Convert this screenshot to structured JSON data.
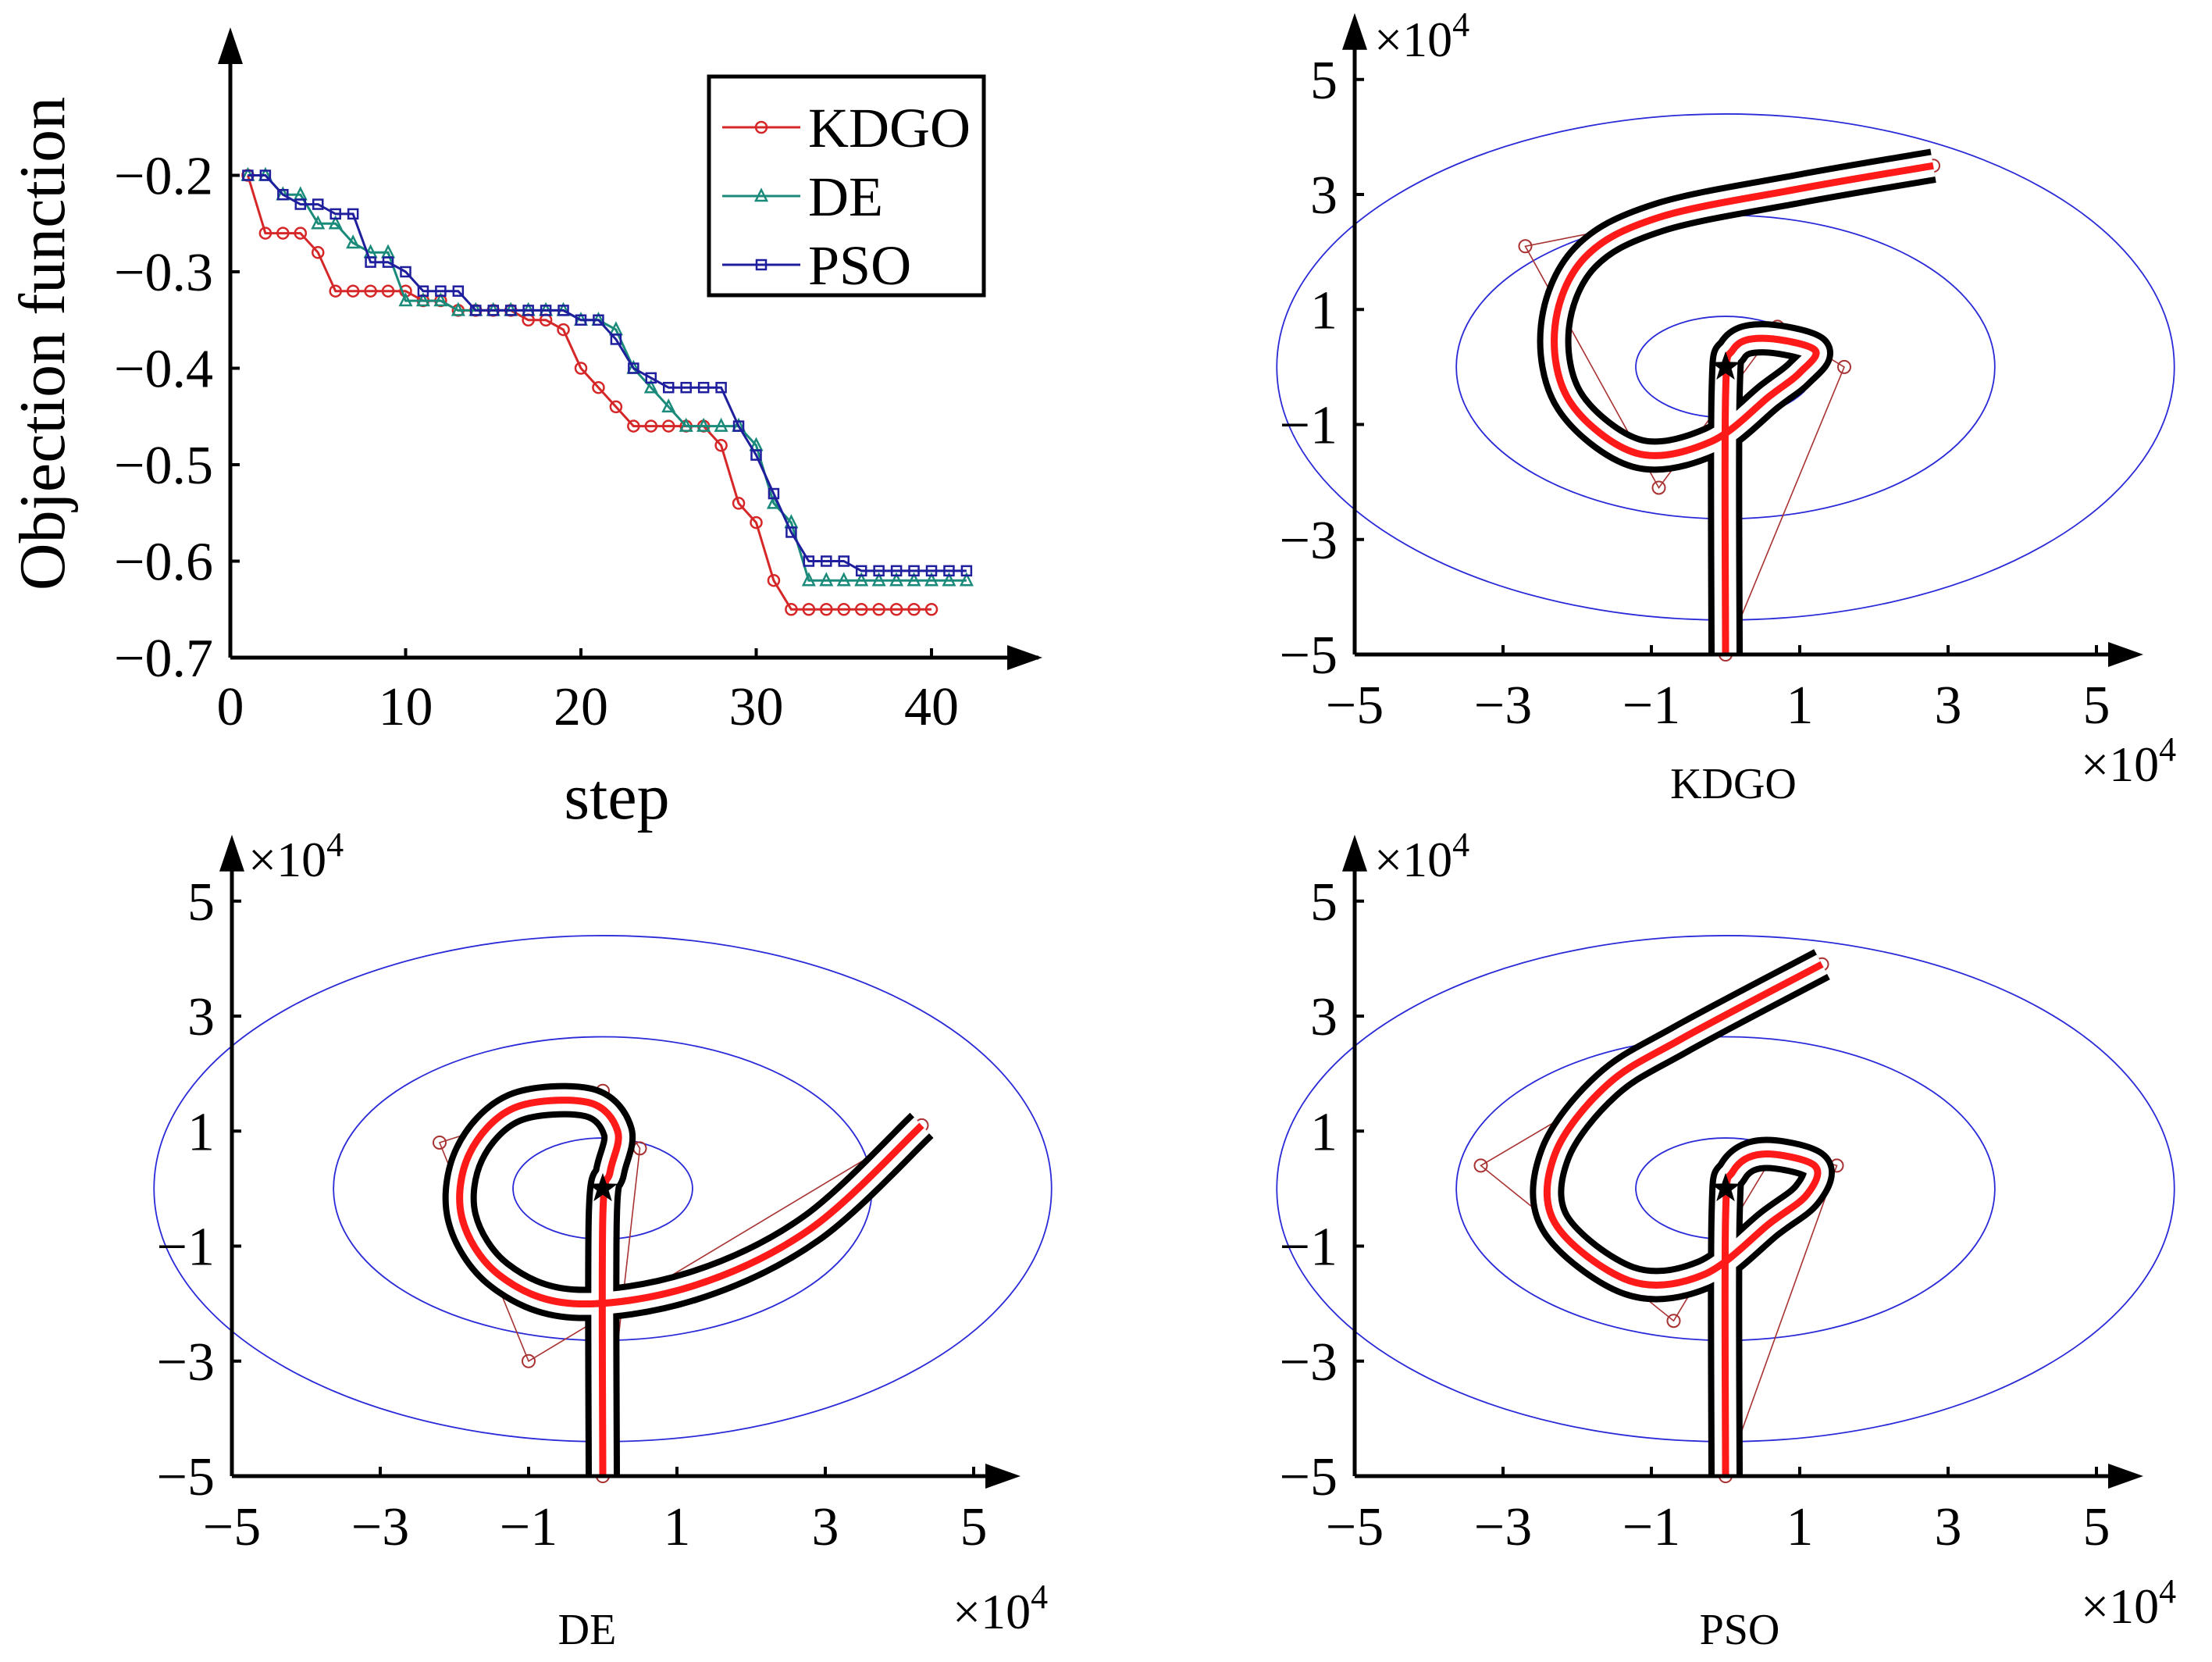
{
  "chart_data": [
    {
      "type": "line",
      "panel": "convergence",
      "xlabel": "step",
      "ylabel": "Objection function",
      "xlim": [
        0,
        45
      ],
      "ylim": [
        -0.7,
        -0.1
      ],
      "xticks": [
        0,
        10,
        20,
        30,
        40
      ],
      "yticks": [
        -0.2,
        -0.3,
        -0.4,
        -0.5,
        -0.6,
        -0.7
      ],
      "xtick_labels": [
        "0",
        "10",
        "20",
        "30",
        "40"
      ],
      "ytick_labels": [
        "−0.2",
        "−0.3",
        "−0.4",
        "−0.5",
        "−0.6",
        "−0.7"
      ],
      "legend_position": "top-right",
      "series": [
        {
          "name": "KDGO",
          "color": "#d62728",
          "marker": "circle",
          "x": [
            1,
            2,
            3,
            4,
            5,
            6,
            7,
            8,
            9,
            10,
            11,
            12,
            13,
            14,
            15,
            16,
            17,
            18,
            19,
            20,
            21,
            22,
            23,
            24,
            25,
            26,
            27,
            28,
            29,
            30,
            31,
            32,
            33,
            34,
            35,
            36,
            37,
            38,
            39,
            40
          ],
          "y": [
            -0.2,
            -0.26,
            -0.26,
            -0.26,
            -0.28,
            -0.32,
            -0.32,
            -0.32,
            -0.32,
            -0.32,
            -0.33,
            -0.33,
            -0.34,
            -0.34,
            -0.34,
            -0.34,
            -0.35,
            -0.35,
            -0.36,
            -0.4,
            -0.42,
            -0.44,
            -0.46,
            -0.46,
            -0.46,
            -0.46,
            -0.46,
            -0.48,
            -0.54,
            -0.56,
            -0.62,
            -0.65,
            -0.65,
            -0.65,
            -0.65,
            -0.65,
            -0.65,
            -0.65,
            -0.65,
            -0.65
          ]
        },
        {
          "name": "DE",
          "color": "#1a8a7a",
          "marker": "triangle",
          "x": [
            1,
            2,
            3,
            4,
            5,
            6,
            7,
            8,
            9,
            10,
            11,
            12,
            13,
            14,
            15,
            16,
            17,
            18,
            19,
            20,
            21,
            22,
            23,
            24,
            25,
            26,
            27,
            28,
            29,
            30,
            31,
            32,
            33,
            34,
            35,
            36,
            37,
            38,
            39,
            40,
            41,
            42
          ],
          "y": [
            -0.2,
            -0.2,
            -0.22,
            -0.22,
            -0.25,
            -0.25,
            -0.27,
            -0.28,
            -0.28,
            -0.33,
            -0.33,
            -0.33,
            -0.34,
            -0.34,
            -0.34,
            -0.34,
            -0.34,
            -0.34,
            -0.34,
            -0.35,
            -0.35,
            -0.36,
            -0.4,
            -0.42,
            -0.44,
            -0.46,
            -0.46,
            -0.46,
            -0.46,
            -0.48,
            -0.54,
            -0.56,
            -0.62,
            -0.62,
            -0.62,
            -0.62,
            -0.62,
            -0.62,
            -0.62,
            -0.62,
            -0.62,
            -0.62
          ]
        },
        {
          "name": "PSO",
          "color": "#1f1f9e",
          "marker": "square",
          "x": [
            1,
            2,
            3,
            4,
            5,
            6,
            7,
            8,
            9,
            10,
            11,
            12,
            13,
            14,
            15,
            16,
            17,
            18,
            19,
            20,
            21,
            22,
            23,
            24,
            25,
            26,
            27,
            28,
            29,
            30,
            31,
            32,
            33,
            34,
            35,
            36,
            37,
            38,
            39,
            40,
            41,
            42
          ],
          "y": [
            -0.2,
            -0.2,
            -0.22,
            -0.23,
            -0.23,
            -0.24,
            -0.24,
            -0.29,
            -0.29,
            -0.3,
            -0.32,
            -0.32,
            -0.32,
            -0.34,
            -0.34,
            -0.34,
            -0.34,
            -0.34,
            -0.34,
            -0.35,
            -0.35,
            -0.37,
            -0.4,
            -0.41,
            -0.42,
            -0.42,
            -0.42,
            -0.42,
            -0.46,
            -0.49,
            -0.53,
            -0.57,
            -0.6,
            -0.6,
            -0.6,
            -0.61,
            -0.61,
            -0.61,
            -0.61,
            -0.61,
            -0.61,
            -0.61
          ]
        }
      ]
    },
    {
      "type": "line",
      "panel": "trajectory",
      "xlabel": "KDGO",
      "xlim": [
        -5,
        5
      ],
      "ylim": [
        -5,
        5
      ],
      "ticks": [
        -5,
        -3,
        -1,
        1,
        3,
        5
      ],
      "tick_labels": [
        "−5",
        "−3",
        "−1",
        "1",
        "3",
        "5"
      ],
      "scale_base": "×10",
      "scale_exp": "4",
      "target": [
        0,
        0
      ],
      "contour_radii": [
        [
          1,
          0.8
        ],
        [
          3,
          2.4
        ],
        [
          5,
          4
        ]
      ],
      "contour_rx_factor": 1.1,
      "waypoints": [
        [
          0,
          -5
        ],
        [
          1.6,
          0
        ],
        [
          0.7,
          0.7
        ],
        [
          -0.9,
          -2.1
        ],
        [
          -2.7,
          2.1
        ],
        [
          2.8,
          3.5
        ]
      ],
      "path": [
        [
          0,
          -5
        ],
        [
          0,
          -0.5
        ],
        [
          0.1,
          0.3
        ],
        [
          0.5,
          0.5
        ],
        [
          1.2,
          0.3
        ],
        [
          1.0,
          -0.1
        ],
        [
          0.6,
          -0.5
        ],
        [
          -0.2,
          -1.3
        ],
        [
          -1.2,
          -1.5
        ],
        [
          -2.1,
          -0.6
        ],
        [
          -2.3,
          0.7
        ],
        [
          -1.9,
          1.9
        ],
        [
          -0.9,
          2.6
        ],
        [
          1.0,
          3.1
        ],
        [
          2.8,
          3.5
        ]
      ]
    },
    {
      "type": "line",
      "panel": "trajectory",
      "xlabel": "DE",
      "xlim": [
        -5,
        5
      ],
      "ylim": [
        -5,
        5
      ],
      "ticks": [
        -5,
        -3,
        -1,
        1,
        3,
        5
      ],
      "tick_labels": [
        "−5",
        "−3",
        "−1",
        "1",
        "3",
        "5"
      ],
      "scale_base": "×10",
      "scale_exp": "4",
      "target": [
        0,
        0
      ],
      "contour_radii": [
        [
          1,
          0.8
        ],
        [
          3,
          2.4
        ],
        [
          5,
          4
        ]
      ],
      "contour_rx_factor": 1.1,
      "waypoints": [
        [
          0,
          -5
        ],
        [
          0.5,
          0.7
        ],
        [
          0,
          1.7
        ],
        [
          -2.2,
          0.8
        ],
        [
          -1,
          -3
        ],
        [
          4.3,
          1.1
        ]
      ],
      "path": [
        [
          0,
          -5
        ],
        [
          0,
          -0.5
        ],
        [
          0.1,
          0.3
        ],
        [
          0.2,
          1.0
        ],
        [
          -0.2,
          1.5
        ],
        [
          -1.2,
          1.4
        ],
        [
          -1.8,
          0.6
        ],
        [
          -1.9,
          -0.5
        ],
        [
          -1.4,
          -1.5
        ],
        [
          -0.4,
          -2.0
        ],
        [
          1.2,
          -1.7
        ],
        [
          2.8,
          -0.7
        ],
        [
          4.3,
          1.1
        ]
      ]
    },
    {
      "type": "line",
      "panel": "trajectory",
      "xlabel": "PSO",
      "xlim": [
        -5,
        5
      ],
      "ylim": [
        -5,
        5
      ],
      "ticks": [
        -5,
        -3,
        -1,
        1,
        3,
        5
      ],
      "tick_labels": [
        "−5",
        "−3",
        "−1",
        "1",
        "3",
        "5"
      ],
      "scale_base": "×10",
      "scale_exp": "4",
      "target": [
        0,
        0
      ],
      "contour_radii": [
        [
          1,
          0.8
        ],
        [
          3,
          2.4
        ],
        [
          5,
          4
        ]
      ],
      "contour_rx_factor": 1.1,
      "waypoints": [
        [
          0,
          -5
        ],
        [
          1.5,
          0.4
        ],
        [
          0.7,
          0.7
        ],
        [
          -0.7,
          -2.3
        ],
        [
          -3.3,
          0.4
        ],
        [
          1.3,
          3.9
        ]
      ],
      "path": [
        [
          0,
          -5
        ],
        [
          0,
          -0.5
        ],
        [
          0.1,
          0.3
        ],
        [
          0.5,
          0.6
        ],
        [
          1.2,
          0.4
        ],
        [
          1.1,
          -0.1
        ],
        [
          0.6,
          -0.6
        ],
        [
          -0.3,
          -1.5
        ],
        [
          -1.3,
          -1.6
        ],
        [
          -2.3,
          -0.6
        ],
        [
          -2.3,
          0.6
        ],
        [
          -1.6,
          1.8
        ],
        [
          -0.6,
          2.6
        ],
        [
          1.3,
          3.9
        ]
      ]
    }
  ]
}
